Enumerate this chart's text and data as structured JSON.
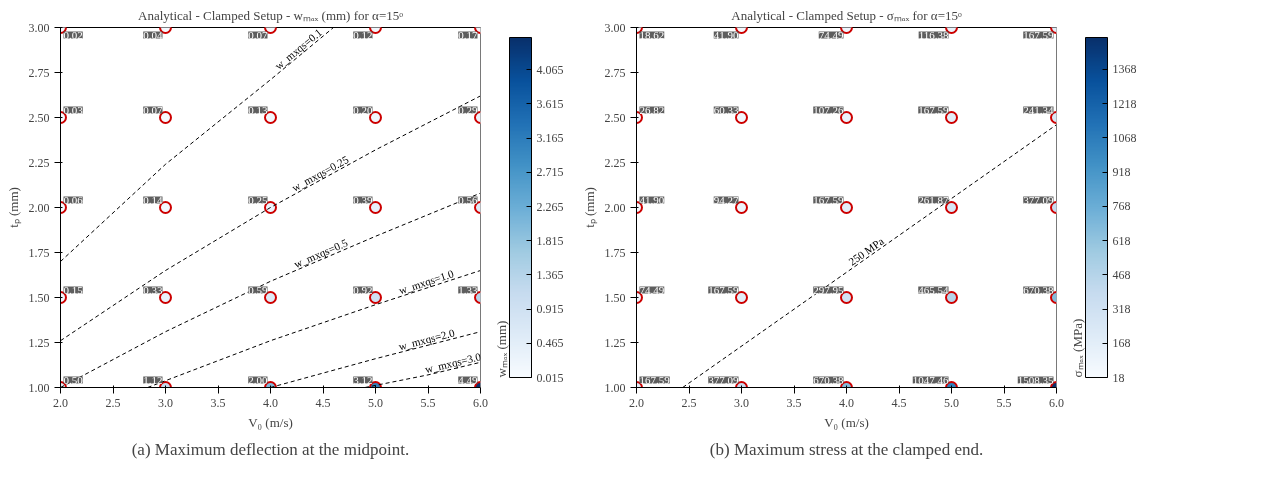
{
  "chart_data": [
    {
      "type": "scatter",
      "title": "Analytical - Clamped Setup - wₘₐₓ (mm) for α=15ᵒ",
      "xlabel": "V₀ (m/s)",
      "ylabel": "tₚ (mm)",
      "clabel": "wₘₐₓ (mm)",
      "annotations": [
        "(a) Maximum deflection at the midpoint.",
        {
          "text": "0.50",
          "x": 2,
          "y": 1
        },
        {
          "text": "1.12",
          "x": 3,
          "y": 1
        },
        {
          "text": "2.00",
          "x": 4,
          "y": 1
        },
        {
          "text": "3.12",
          "x": 5,
          "y": 1
        },
        {
          "text": "4.49",
          "x": 6,
          "y": 1
        },
        {
          "text": "0.15",
          "x": 2,
          "y": 1.5
        },
        {
          "text": "0.33",
          "x": 3,
          "y": 1.5
        },
        {
          "text": "0.59",
          "x": 4,
          "y": 1.5
        },
        {
          "text": "0.92",
          "x": 5,
          "y": 1.5
        },
        {
          "text": "1.33",
          "x": 6,
          "y": 1.5
        },
        {
          "text": "0.06",
          "x": 2,
          "y": 2
        },
        {
          "text": "0.14",
          "x": 3,
          "y": 2
        },
        {
          "text": "0.25",
          "x": 4,
          "y": 2
        },
        {
          "text": "0.39",
          "x": 5,
          "y": 2
        },
        {
          "text": "0.56",
          "x": 6,
          "y": 2
        },
        {
          "text": "0.03",
          "x": 2,
          "y": 2.5
        },
        {
          "text": "0.07",
          "x": 3,
          "y": 2.5
        },
        {
          "text": "0.13",
          "x": 4,
          "y": 2.5
        },
        {
          "text": "0.20",
          "x": 5,
          "y": 2.5
        },
        {
          "text": "0.29",
          "x": 6,
          "y": 2.5
        },
        {
          "text": "0.02",
          "x": 2,
          "y": 3
        },
        {
          "text": "0.04",
          "x": 3,
          "y": 3
        },
        {
          "text": "0.07",
          "x": 4,
          "y": 3
        },
        {
          "text": "0.12",
          "x": 5,
          "y": 3
        },
        {
          "text": "0.17",
          "x": 6,
          "y": 3
        }
      ],
      "xlim": [
        2,
        6
      ],
      "ylim": [
        1,
        3
      ],
      "xticks": [
        {
          "value": 2,
          "label": "2.0"
        },
        {
          "value": 2.5,
          "label": "2.5"
        },
        {
          "value": 3,
          "label": "3.0"
        },
        {
          "value": 3.5,
          "label": "3.5"
        },
        {
          "value": 4,
          "label": "4.0"
        },
        {
          "value": 4.5,
          "label": "4.5"
        },
        {
          "value": 5,
          "label": "5.0"
        },
        {
          "value": 5.5,
          "label": "5.5"
        },
        {
          "value": 6,
          "label": "6.0"
        }
      ],
      "yticks": [
        {
          "value": 1,
          "label": "1.00"
        },
        {
          "value": 1.25,
          "label": "1.25"
        },
        {
          "value": 1.5,
          "label": "1.50"
        },
        {
          "value": 1.75,
          "label": "1.75"
        },
        {
          "value": 2,
          "label": "2.00"
        },
        {
          "value": 2.25,
          "label": "2.25"
        },
        {
          "value": 2.5,
          "label": "2.50"
        },
        {
          "value": 2.75,
          "label": "2.75"
        },
        {
          "value": 3,
          "label": "3.00"
        }
      ],
      "clim": [
        0.015,
        4.49
      ],
      "cticks": [
        0.015,
        0.465,
        0.915,
        1.365,
        1.815,
        2.265,
        2.715,
        3.165,
        3.615,
        4.065
      ],
      "series": [
        {
          "marker": "circle",
          "color": "#cc0000",
          "x": [
            2,
            3,
            4,
            5,
            6,
            2,
            3,
            4,
            5,
            6,
            2,
            3,
            4,
            5,
            6,
            2,
            3,
            4,
            5,
            6,
            2,
            3,
            4,
            5,
            6
          ],
          "values": [
            1,
            1,
            1,
            1,
            1,
            1.5,
            1.5,
            1.5,
            1.5,
            1.5,
            2,
            2,
            2,
            2,
            2,
            2.5,
            2.5,
            2.5,
            2.5,
            2.5,
            3,
            3,
            3,
            3,
            3
          ],
          "cvalues": [
            0.5,
            1.12,
            2.0,
            3.12,
            4.49,
            0.15,
            0.33,
            0.59,
            0.92,
            1.33,
            0.06,
            0.14,
            0.25,
            0.39,
            0.56,
            0.03,
            0.07,
            0.13,
            0.2,
            0.29,
            0.02,
            0.04,
            0.07,
            0.12,
            0.17
          ]
        },
        {
          "type": "line",
          "name": "w_mxqs=0.1",
          "color": "#000000",
          "line_style": "dashed",
          "x": [
            2,
            3,
            4,
            4.6
          ],
          "values": [
            1.7,
            2.24,
            2.71,
            3.0
          ]
        },
        {
          "type": "line",
          "name": "w_mxqs=0.25",
          "color": "#000000",
          "line_style": "dashed",
          "x": [
            2,
            3,
            4,
            5,
            6
          ],
          "values": [
            1.26,
            1.65,
            2.0,
            2.32,
            2.62
          ]
        },
        {
          "type": "line",
          "name": "w_mxqs=0.5",
          "color": "#000000",
          "line_style": "dashed",
          "x": [
            2,
            3,
            4,
            5,
            6
          ],
          "values": [
            1.0,
            1.31,
            1.59,
            1.84,
            2.08
          ]
        },
        {
          "type": "line",
          "name": "w_mxqs=1.0",
          "color": "#000000",
          "line_style": "dashed",
          "x": [
            2.83,
            4,
            5,
            6
          ],
          "values": [
            1.0,
            1.26,
            1.46,
            1.65
          ]
        },
        {
          "type": "line",
          "name": "w_mxqs=2.0",
          "color": "#000000",
          "line_style": "dashed",
          "x": [
            4,
            5,
            6
          ],
          "values": [
            1.0,
            1.16,
            1.31
          ]
        },
        {
          "type": "line",
          "name": "w_mxqs=3.0",
          "color": "#000000",
          "line_style": "dashed",
          "x": [
            4.9,
            5.5,
            6
          ],
          "values": [
            1.0,
            1.07,
            1.14
          ]
        }
      ]
    },
    {
      "type": "scatter",
      "title": "Analytical - Clamped Setup - σₘₐₓ for α=15ᵒ",
      "xlabel": "V₀ (m/s)",
      "ylabel": "tₚ (mm)",
      "clabel": "σₘₐₓ (MPa)",
      "annotations": [
        "(b) Maximum stress at the clamped end.",
        {
          "text": "167.59",
          "x": 2,
          "y": 1
        },
        {
          "text": "377.09",
          "x": 3,
          "y": 1
        },
        {
          "text": "670.38",
          "x": 4,
          "y": 1
        },
        {
          "text": "1047.46",
          "x": 5,
          "y": 1
        },
        {
          "text": "1508.35",
          "x": 6,
          "y": 1
        },
        {
          "text": "74.49",
          "x": 2,
          "y": 1.5
        },
        {
          "text": "167.59",
          "x": 3,
          "y": 1.5
        },
        {
          "text": "297.95",
          "x": 4,
          "y": 1.5
        },
        {
          "text": "465.54",
          "x": 5,
          "y": 1.5
        },
        {
          "text": "670.38",
          "x": 6,
          "y": 1.5
        },
        {
          "text": "41.90",
          "x": 2,
          "y": 2
        },
        {
          "text": "94.27",
          "x": 3,
          "y": 2
        },
        {
          "text": "167.59",
          "x": 4,
          "y": 2
        },
        {
          "text": "261.87",
          "x": 5,
          "y": 2
        },
        {
          "text": "377.09",
          "x": 6,
          "y": 2
        },
        {
          "text": "26.82",
          "x": 2,
          "y": 2.5
        },
        {
          "text": "60.33",
          "x": 3,
          "y": 2.5
        },
        {
          "text": "107.26",
          "x": 4,
          "y": 2.5
        },
        {
          "text": "167.59",
          "x": 5,
          "y": 2.5
        },
        {
          "text": "241.34",
          "x": 6,
          "y": 2.5
        },
        {
          "text": "18.62",
          "x": 2,
          "y": 3
        },
        {
          "text": "41.90",
          "x": 3,
          "y": 3
        },
        {
          "text": "74.49",
          "x": 4,
          "y": 3
        },
        {
          "text": "116.38",
          "x": 5,
          "y": 3
        },
        {
          "text": "167.59",
          "x": 6,
          "y": 3
        }
      ],
      "xlim": [
        2,
        6
      ],
      "ylim": [
        1,
        3
      ],
      "xticks": [
        {
          "value": 2,
          "label": "2.0"
        },
        {
          "value": 2.5,
          "label": "2.5"
        },
        {
          "value": 3,
          "label": "3.0"
        },
        {
          "value": 3.5,
          "label": "3.5"
        },
        {
          "value": 4,
          "label": "4.0"
        },
        {
          "value": 4.5,
          "label": "4.5"
        },
        {
          "value": 5,
          "label": "5.0"
        },
        {
          "value": 5.5,
          "label": "5.5"
        },
        {
          "value": 6,
          "label": "6.0"
        }
      ],
      "yticks": [
        {
          "value": 1,
          "label": "1.00"
        },
        {
          "value": 1.25,
          "label": "1.25"
        },
        {
          "value": 1.5,
          "label": "1.50"
        },
        {
          "value": 1.75,
          "label": "1.75"
        },
        {
          "value": 2,
          "label": "2.00"
        },
        {
          "value": 2.25,
          "label": "2.25"
        },
        {
          "value": 2.5,
          "label": "2.50"
        },
        {
          "value": 2.75,
          "label": "2.75"
        },
        {
          "value": 3,
          "label": "3.00"
        }
      ],
      "clim": [
        18,
        1508
      ],
      "cticks": [
        18,
        168,
        318,
        468,
        618,
        768,
        918,
        1068,
        1218,
        1368
      ],
      "series": [
        {
          "marker": "circle",
          "color": "#cc0000",
          "x": [
            2,
            3,
            4,
            5,
            6,
            2,
            3,
            4,
            5,
            6,
            2,
            3,
            4,
            5,
            6,
            2,
            3,
            4,
            5,
            6,
            2,
            3,
            4,
            5,
            6
          ],
          "values": [
            1,
            1,
            1,
            1,
            1,
            1.5,
            1.5,
            1.5,
            1.5,
            1.5,
            2,
            2,
            2,
            2,
            2,
            2.5,
            2.5,
            2.5,
            2.5,
            2.5,
            3,
            3,
            3,
            3,
            3
          ],
          "cvalues": [
            167.59,
            377.09,
            670.38,
            1047.46,
            1508.35,
            74.49,
            167.59,
            297.95,
            465.54,
            670.38,
            41.9,
            94.27,
            167.59,
            261.87,
            377.09,
            26.82,
            60.33,
            107.26,
            167.59,
            241.34,
            18.62,
            41.9,
            74.49,
            116.38,
            167.59
          ]
        },
        {
          "type": "line",
          "name": "250 MPa",
          "color": "#000000",
          "line_style": "dashed",
          "x": [
            2.44,
            6
          ],
          "values": [
            1.0,
            2.46
          ]
        }
      ]
    }
  ]
}
